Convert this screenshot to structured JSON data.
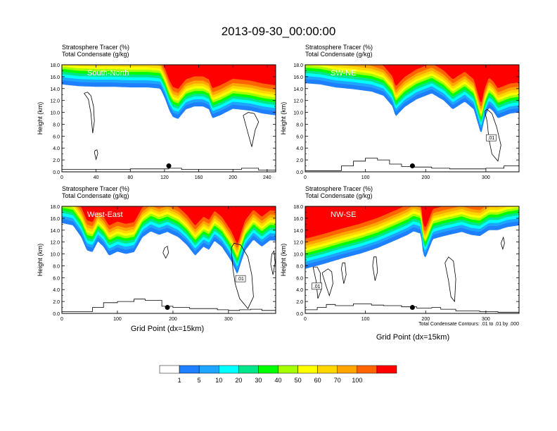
{
  "figure": {
    "title": "2013-09-30_00:00:00",
    "contour_note": "Total Condensate Contours: .01 to .01 by .000",
    "colorbar": {
      "colors": [
        "#ffffff",
        "#1e7fff",
        "#1ea6ff",
        "#00ffff",
        "#00e68c",
        "#00ff00",
        "#a6ff00",
        "#ffff00",
        "#ffd700",
        "#ffa500",
        "#ff6400",
        "#ff0000"
      ],
      "labels": [
        "1",
        "5",
        "10",
        "20",
        "30",
        "40",
        "50",
        "60",
        "70",
        "100"
      ]
    }
  },
  "chart_data": [
    {
      "type": "area",
      "panel_label": "South-North",
      "left_title_1": "Stratosphere Tracer   (%)",
      "left_title_2": "Total Condensate   (g/kg)",
      "xlabel": "",
      "ylabel": "Height (km)",
      "xlim": [
        0,
        250
      ],
      "ylim": [
        0,
        18
      ],
      "xticks": [
        "0",
        "40",
        "80",
        "120",
        "160",
        "200",
        "240"
      ],
      "xtick_values": [
        0,
        40,
        80,
        120,
        160,
        200,
        240
      ],
      "yticks": [
        "0.0",
        "2.0",
        "4.0",
        "6.0",
        "8.0",
        "10.0",
        "12.0",
        "14.0",
        "16.0",
        "18.0"
      ],
      "contour_label": "",
      "marker": {
        "x": 125,
        "y": 1.0
      },
      "tracer_base": [
        [
          0,
          14.7
        ],
        [
          20,
          14.4
        ],
        [
          40,
          14.3
        ],
        [
          60,
          14.3
        ],
        [
          80,
          14.2
        ],
        [
          100,
          14.2
        ],
        [
          115,
          14.0
        ],
        [
          120,
          12.5
        ],
        [
          126,
          10.2
        ],
        [
          130,
          9.2
        ],
        [
          136,
          8.9
        ],
        [
          145,
          10.5
        ],
        [
          155,
          11.0
        ],
        [
          165,
          11.0
        ],
        [
          172,
          10.5
        ],
        [
          176,
          9.0
        ],
        [
          185,
          9.5
        ],
        [
          200,
          10.6
        ],
        [
          220,
          10.3
        ],
        [
          235,
          9.8
        ],
        [
          250,
          9.5
        ]
      ],
      "terrain": [
        [
          0,
          0.4
        ],
        [
          60,
          0.4
        ],
        [
          80,
          0.5
        ],
        [
          110,
          0.5
        ],
        [
          125,
          0.6
        ],
        [
          140,
          0.4
        ],
        [
          160,
          0.4
        ],
        [
          190,
          0.4
        ],
        [
          210,
          0.6
        ],
        [
          230,
          0.3
        ],
        [
          250,
          0.4
        ]
      ],
      "condensate_outlines": [
        [
          [
            26,
            13.2
          ],
          [
            31,
            12.2
          ],
          [
            34,
            9.8
          ],
          [
            36,
            6.5
          ],
          [
            38,
            8.5
          ],
          [
            37,
            11.0
          ],
          [
            34,
            12.8
          ],
          [
            30,
            13.4
          ],
          [
            26,
            13.2
          ]
        ],
        [
          [
            38,
            3.3
          ],
          [
            40,
            2.1
          ],
          [
            42,
            3.1
          ],
          [
            41,
            3.7
          ],
          [
            39,
            3.6
          ],
          [
            38,
            3.3
          ]
        ],
        [
          [
            212,
            9.5
          ],
          [
            218,
            6.3
          ],
          [
            222,
            4.2
          ],
          [
            226,
            7.0
          ],
          [
            230,
            8.4
          ],
          [
            225,
            9.8
          ],
          [
            218,
            10.0
          ],
          [
            212,
            9.5
          ]
        ]
      ]
    },
    {
      "type": "area",
      "panel_label": "SW-NE",
      "left_title_1": "Stratosphere Tracer   (%)",
      "left_title_2": "Total Condensate   (g/kg)",
      "xlabel": "",
      "ylabel": "Height (km)",
      "xlim": [
        0,
        355
      ],
      "ylim": [
        0,
        18
      ],
      "xticks": [
        "0",
        "100",
        "200",
        "300"
      ],
      "xtick_values": [
        0,
        100,
        200,
        300
      ],
      "yticks": [
        "0.0",
        "2.0",
        "4.0",
        "6.0",
        "8.0",
        "10.0",
        "12.0",
        "14.0",
        "16.0",
        "18.0"
      ],
      "contour_label": ".01",
      "marker": {
        "x": 178,
        "y": 1.0
      },
      "tracer_base": [
        [
          0,
          14.9
        ],
        [
          25,
          14.7
        ],
        [
          50,
          14.2
        ],
        [
          80,
          13.9
        ],
        [
          110,
          13.5
        ],
        [
          130,
          12.8
        ],
        [
          145,
          11.0
        ],
        [
          150,
          9.3
        ],
        [
          165,
          10.9
        ],
        [
          185,
          12.2
        ],
        [
          210,
          13.2
        ],
        [
          230,
          12.0
        ],
        [
          245,
          10.5
        ],
        [
          265,
          11.8
        ],
        [
          280,
          10.5
        ],
        [
          292,
          6.3
        ],
        [
          298,
          9.0
        ],
        [
          305,
          10.8
        ],
        [
          312,
          10.2
        ],
        [
          320,
          9.0
        ],
        [
          340,
          9.8
        ],
        [
          355,
          10.0
        ]
      ],
      "terrain": [
        [
          0,
          0.2
        ],
        [
          50,
          0.2
        ],
        [
          60,
          1.0
        ],
        [
          80,
          1.8
        ],
        [
          100,
          2.3
        ],
        [
          120,
          2.0
        ],
        [
          140,
          1.3
        ],
        [
          160,
          0.9
        ],
        [
          180,
          0.8
        ],
        [
          210,
          0.6
        ],
        [
          240,
          0.5
        ],
        [
          270,
          0.5
        ],
        [
          300,
          0.6
        ],
        [
          330,
          1.0
        ],
        [
          355,
          0.8
        ]
      ],
      "condensate_outlines": [
        [
          [
            298,
            10.2
          ],
          [
            302,
            8.5
          ],
          [
            305,
            5.5
          ],
          [
            310,
            3.0
          ],
          [
            320,
            1.8
          ],
          [
            325,
            4.5
          ],
          [
            318,
            7.5
          ],
          [
            310,
            9.8
          ],
          [
            302,
            10.5
          ],
          [
            298,
            10.2
          ]
        ]
      ]
    },
    {
      "type": "area",
      "panel_label": "West-East",
      "left_title_1": "Stratosphere Tracer   (%)",
      "left_title_2": "Total Condensate   (g/kg)",
      "xlabel": "Grid Point (dx=15km)",
      "ylabel": "Height (km)",
      "xlim": [
        0,
        385
      ],
      "ylim": [
        0,
        18
      ],
      "xticks": [
        "0",
        "100",
        "200",
        "300"
      ],
      "xtick_values": [
        0,
        100,
        200,
        300
      ],
      "yticks": [
        "0.0",
        "2.0",
        "4.0",
        "6.0",
        "8.0",
        "10.0",
        "12.0",
        "14.0",
        "16.0",
        "18.0"
      ],
      "contour_label": ".01",
      "marker": {
        "x": 190,
        "y": 1.0
      },
      "tracer_base": [
        [
          0,
          15.2
        ],
        [
          20,
          14.8
        ],
        [
          35,
          12.8
        ],
        [
          45,
          10.6
        ],
        [
          55,
          10.3
        ],
        [
          65,
          12.1
        ],
        [
          75,
          11.2
        ],
        [
          85,
          9.7
        ],
        [
          100,
          10.4
        ],
        [
          115,
          10.0
        ],
        [
          130,
          10.3
        ],
        [
          145,
          12.8
        ],
        [
          160,
          13.8
        ],
        [
          175,
          13.2
        ],
        [
          190,
          13.7
        ],
        [
          210,
          12.8
        ],
        [
          225,
          11.5
        ],
        [
          240,
          9.7
        ],
        [
          255,
          11.2
        ],
        [
          265,
          10.7
        ],
        [
          275,
          12.2
        ],
        [
          288,
          11.2
        ],
        [
          305,
          8.8
        ],
        [
          316,
          6.5
        ],
        [
          322,
          8.4
        ],
        [
          330,
          10.6
        ],
        [
          345,
          12.4
        ],
        [
          360,
          11.2
        ],
        [
          375,
          12.3
        ],
        [
          385,
          12.2
        ]
      ],
      "terrain": [
        [
          0,
          0.3
        ],
        [
          40,
          0.3
        ],
        [
          55,
          1.0
        ],
        [
          75,
          1.8
        ],
        [
          100,
          2.0
        ],
        [
          130,
          2.4
        ],
        [
          150,
          2.2
        ],
        [
          180,
          1.2
        ],
        [
          200,
          1.0
        ],
        [
          230,
          0.8
        ],
        [
          260,
          0.8
        ],
        [
          280,
          0.6
        ],
        [
          300,
          0.5
        ],
        [
          320,
          0.6
        ],
        [
          340,
          0.7
        ],
        [
          360,
          0.5
        ],
        [
          385,
          0.3
        ]
      ],
      "condensate_outlines": [
        [
          [
            305,
            11.0
          ],
          [
            308,
            7.5
          ],
          [
            312,
            5.0
          ],
          [
            320,
            2.5
          ],
          [
            335,
            0.8
          ],
          [
            345,
            2.8
          ],
          [
            342,
            6.5
          ],
          [
            335,
            9.5
          ],
          [
            322,
            11.5
          ],
          [
            310,
            11.8
          ],
          [
            305,
            11.0
          ]
        ],
        [
          [
            182,
            10.2
          ],
          [
            187,
            9.3
          ],
          [
            192,
            10.2
          ],
          [
            190,
            11.3
          ],
          [
            185,
            11.0
          ],
          [
            182,
            10.2
          ]
        ],
        [
          [
            376,
            8.3
          ],
          [
            380,
            6.5
          ],
          [
            384,
            8.5
          ],
          [
            382,
            10.5
          ],
          [
            378,
            10.0
          ],
          [
            376,
            8.3
          ]
        ]
      ]
    },
    {
      "type": "area",
      "panel_label": "NW-SE",
      "left_title_1": "Stratosphere Tracer   (%)",
      "left_title_2": "Total Condensate   (g/kg)",
      "xlabel": "Grid Point (dx=15km)",
      "ylabel": "Height (km)",
      "xlim": [
        0,
        355
      ],
      "ylim": [
        0,
        18
      ],
      "xticks": [
        "0",
        "100",
        "200",
        "300"
      ],
      "xtick_values": [
        0,
        100,
        200,
        300
      ],
      "yticks": [
        "0.0",
        "2.0",
        "4.0",
        "6.0",
        "8.0",
        "10.0",
        "12.0",
        "14.0",
        "16.0",
        "18.0"
      ],
      "contour_label": ".01",
      "marker": {
        "x": 178,
        "y": 1.0
      },
      "tracer_base": [
        [
          0,
          7.5
        ],
        [
          30,
          8.3
        ],
        [
          60,
          9.2
        ],
        [
          90,
          10.0
        ],
        [
          120,
          11.0
        ],
        [
          150,
          12.3
        ],
        [
          170,
          13.2
        ],
        [
          180,
          13.8
        ],
        [
          192,
          13.4
        ],
        [
          196,
          9.8
        ],
        [
          200,
          9.4
        ],
        [
          212,
          12.5
        ],
        [
          230,
          13.0
        ],
        [
          260,
          13.7
        ],
        [
          275,
          13.2
        ],
        [
          290,
          13.0
        ],
        [
          305,
          14.0
        ],
        [
          320,
          14.0
        ],
        [
          335,
          14.5
        ],
        [
          355,
          14.8
        ]
      ],
      "terrain": [
        [
          0,
          0.6
        ],
        [
          20,
          1.0
        ],
        [
          35,
          1.5
        ],
        [
          50,
          1.3
        ],
        [
          80,
          1.6
        ],
        [
          110,
          1.4
        ],
        [
          130,
          1.3
        ],
        [
          160,
          1.1
        ],
        [
          185,
          0.9
        ],
        [
          210,
          1.0
        ],
        [
          225,
          0.7
        ],
        [
          250,
          0.4
        ],
        [
          290,
          0.3
        ],
        [
          320,
          0.2
        ],
        [
          355,
          0.2
        ]
      ],
      "condensate_outlines": [
        [
          [
            13,
            7.8
          ],
          [
            18,
            5.5
          ],
          [
            21,
            2.5
          ],
          [
            26,
            3.8
          ],
          [
            25,
            6.8
          ],
          [
            20,
            7.8
          ],
          [
            13,
            7.8
          ]
        ],
        [
          [
            28,
            6.8
          ],
          [
            35,
            4.5
          ],
          [
            40,
            3.0
          ],
          [
            46,
            5.0
          ],
          [
            44,
            7.0
          ],
          [
            38,
            7.5
          ],
          [
            28,
            6.8
          ]
        ],
        [
          [
            60,
            7.5
          ],
          [
            64,
            5.0
          ],
          [
            68,
            6.5
          ],
          [
            66,
            8.5
          ],
          [
            62,
            8.5
          ],
          [
            60,
            7.5
          ]
        ],
        [
          [
            112,
            8.0
          ],
          [
            116,
            5.5
          ],
          [
            120,
            7.0
          ],
          [
            118,
            9.5
          ],
          [
            114,
            9.5
          ],
          [
            112,
            8.0
          ]
        ],
        [
          [
            232,
            8.5
          ],
          [
            238,
            5.5
          ],
          [
            242,
            2.8
          ],
          [
            248,
            2.0
          ],
          [
            250,
            5.8
          ],
          [
            246,
            8.8
          ],
          [
            238,
            9.5
          ],
          [
            232,
            8.5
          ]
        ],
        [
          [
            325,
            11.8
          ],
          [
            328,
            10.8
          ],
          [
            331,
            11.8
          ],
          [
            329,
            12.8
          ],
          [
            325,
            11.8
          ]
        ]
      ]
    }
  ]
}
